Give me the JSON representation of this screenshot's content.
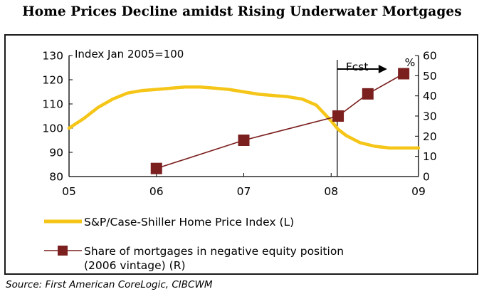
{
  "title": "Home Prices Decline amidst Rising Underwater Mortgages",
  "source": "Source: First American CoreLogic, CIBCWM",
  "chart_data": {
    "type": "line",
    "annotation_index": "Index Jan 2005=100",
    "forecast_label": "Fcst",
    "forecast_start": 2008.07,
    "right_axis_unit": "%",
    "x_ticks": [
      2005,
      2006,
      2007,
      2008,
      2009
    ],
    "x_tick_labels": [
      "05",
      "06",
      "07",
      "08",
      "09"
    ],
    "xlim": [
      2005,
      2009
    ],
    "ylim_left": [
      80,
      130
    ],
    "yticks_left": [
      80,
      90,
      100,
      110,
      120,
      130
    ],
    "ylim_right": [
      0,
      60
    ],
    "yticks_right": [
      0,
      10,
      20,
      30,
      40,
      50,
      60
    ],
    "grid": false,
    "legend_position": "bottom",
    "series": [
      {
        "name": "S&P/Case-Shiller Home Price Index (L)",
        "axis": "left",
        "color": "#F5C518",
        "x": [
          2005.0,
          2005.17,
          2005.33,
          2005.5,
          2005.67,
          2005.83,
          2006.0,
          2006.17,
          2006.33,
          2006.5,
          2006.67,
          2006.83,
          2007.0,
          2007.17,
          2007.33,
          2007.5,
          2007.67,
          2007.83,
          2008.0,
          2008.08,
          2008.17,
          2008.33,
          2008.5,
          2008.67,
          2008.83,
          2009.0
        ],
        "y": [
          100,
          104,
          108.5,
          112,
          114.5,
          115.5,
          116,
          116.5,
          117,
          117,
          116.5,
          116,
          115,
          114,
          113.5,
          113,
          112,
          109.5,
          103,
          99.5,
          97,
          94,
          92.5,
          91.8,
          91.8,
          91.8
        ]
      },
      {
        "name": "Share of mortgages in negative equity position (2006 vintage) (R)",
        "axis": "right",
        "color": "#7B1F1F",
        "marker": "square",
        "x": [
          2006.0,
          2007.0,
          2008.08,
          2008.42,
          2008.83
        ],
        "y": [
          4,
          18,
          30,
          41,
          51
        ]
      }
    ]
  }
}
